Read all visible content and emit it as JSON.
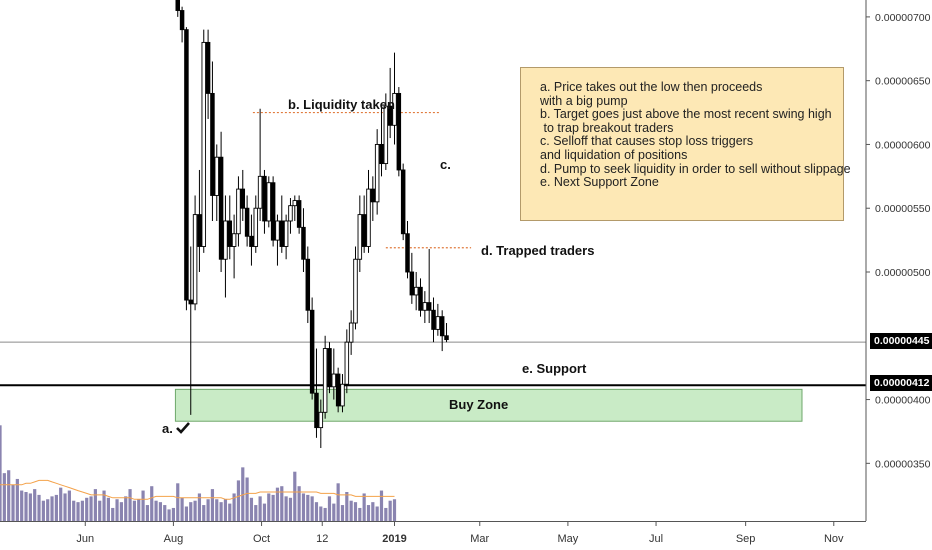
{
  "annotations": {
    "note_lines": [
      "a. Price takes out the low then proceeds",
      "with a big pump",
      "b. Target goes just above the most recent swing high",
      " to trap breakout traders",
      "c. Selloff that causes stop loss triggers",
      "and liquidation of positions",
      "d. Pump to seek liquidity in order to sell without slippage",
      "e. Next Support Zone"
    ],
    "liquidity_taken": "b. Liquidity taken",
    "c_label": "c.",
    "trapped_traders": "d. Trapped traders",
    "support_label": "e. Support",
    "buy_zone_label": "Buy Zone",
    "a_label": "a.",
    "check_icon": "checkmark-icon"
  },
  "price_tags": {
    "current": "0.00000445",
    "support": "0.00000412"
  },
  "colors": {
    "candle": "#000000",
    "buy_zone_fill": "#c9ebc6",
    "buy_zone_border": "#6fa86b",
    "volume_bar": "#8a84b0",
    "volume_ma": "#f4a24a",
    "dotted_level": "#e07a3c",
    "note_background": "#fde8b5"
  },
  "chart_data": {
    "type": "candlestick",
    "y_axis": {
      "ticks": [
        "0.00000700",
        "0.00000650",
        "0.00000600",
        "0.00000550",
        "0.00000500",
        "0.00000400",
        "0.00000350"
      ],
      "tick_values": [
        700,
        650,
        600,
        550,
        500,
        400,
        350
      ],
      "range": [
        318,
        720
      ],
      "unit": "1e-8",
      "position": "right"
    },
    "x_axis": {
      "ticks": [
        "Jun",
        "Aug",
        "Oct",
        "12",
        "2019",
        "Mar",
        "May",
        "Jul",
        "Sep",
        "Nov"
      ],
      "tick_days": [
        -214,
        -153,
        -92,
        -50,
        0,
        59,
        120,
        181,
        243,
        304
      ]
    },
    "levels": {
      "current_price": 445,
      "support": 412,
      "liquidity_taken": 625,
      "trapped_traders": 519
    },
    "buy_zone": {
      "low": 383,
      "high": 408,
      "day_start": -153,
      "day_end": 282
    },
    "candles": [
      {
        "d": -150,
        "o": 720,
        "h": 722,
        "l": 700,
        "c": 705
      },
      {
        "d": -147,
        "o": 705,
        "h": 708,
        "l": 680,
        "c": 690
      },
      {
        "d": -144,
        "o": 690,
        "h": 692,
        "l": 470,
        "c": 478
      },
      {
        "d": -141,
        "o": 478,
        "h": 520,
        "l": 388,
        "c": 475
      },
      {
        "d": -138,
        "o": 475,
        "h": 560,
        "l": 470,
        "c": 545
      },
      {
        "d": -135,
        "o": 545,
        "h": 580,
        "l": 500,
        "c": 520
      },
      {
        "d": -132,
        "o": 520,
        "h": 690,
        "l": 515,
        "c": 680
      },
      {
        "d": -129,
        "o": 680,
        "h": 690,
        "l": 620,
        "c": 640
      },
      {
        "d": -126,
        "o": 640,
        "h": 665,
        "l": 540,
        "c": 560
      },
      {
        "d": -123,
        "o": 560,
        "h": 600,
        "l": 540,
        "c": 590
      },
      {
        "d": -120,
        "o": 590,
        "h": 610,
        "l": 500,
        "c": 510
      },
      {
        "d": -117,
        "o": 510,
        "h": 560,
        "l": 480,
        "c": 540
      },
      {
        "d": -114,
        "o": 540,
        "h": 560,
        "l": 510,
        "c": 520
      },
      {
        "d": -111,
        "o": 520,
        "h": 545,
        "l": 495,
        "c": 530
      },
      {
        "d": -108,
        "o": 530,
        "h": 575,
        "l": 520,
        "c": 565
      },
      {
        "d": -105,
        "o": 565,
        "h": 580,
        "l": 540,
        "c": 550
      },
      {
        "d": -102,
        "o": 550,
        "h": 560,
        "l": 520,
        "c": 528
      },
      {
        "d": -99,
        "o": 528,
        "h": 545,
        "l": 505,
        "c": 520
      },
      {
        "d": -96,
        "o": 520,
        "h": 560,
        "l": 515,
        "c": 550
      },
      {
        "d": -93,
        "o": 550,
        "h": 628,
        "l": 540,
        "c": 575
      },
      {
        "d": -90,
        "o": 575,
        "h": 580,
        "l": 530,
        "c": 540
      },
      {
        "d": -87,
        "o": 540,
        "h": 575,
        "l": 535,
        "c": 570
      },
      {
        "d": -84,
        "o": 570,
        "h": 575,
        "l": 520,
        "c": 525
      },
      {
        "d": -81,
        "o": 525,
        "h": 545,
        "l": 505,
        "c": 540
      },
      {
        "d": -78,
        "o": 540,
        "h": 560,
        "l": 515,
        "c": 520
      },
      {
        "d": -75,
        "o": 520,
        "h": 545,
        "l": 510,
        "c": 540
      },
      {
        "d": -72,
        "o": 540,
        "h": 558,
        "l": 530,
        "c": 552
      },
      {
        "d": -69,
        "o": 552,
        "h": 560,
        "l": 540,
        "c": 556
      },
      {
        "d": -66,
        "o": 556,
        "h": 560,
        "l": 530,
        "c": 535
      },
      {
        "d": -63,
        "o": 535,
        "h": 550,
        "l": 500,
        "c": 510
      },
      {
        "d": -60,
        "o": 510,
        "h": 520,
        "l": 460,
        "c": 470
      },
      {
        "d": -57,
        "o": 470,
        "h": 480,
        "l": 400,
        "c": 405
      },
      {
        "d": -54,
        "o": 405,
        "h": 440,
        "l": 370,
        "c": 378
      },
      {
        "d": -51,
        "o": 378,
        "h": 400,
        "l": 362,
        "c": 390
      },
      {
        "d": -48,
        "o": 390,
        "h": 450,
        "l": 385,
        "c": 440
      },
      {
        "d": -45,
        "o": 440,
        "h": 445,
        "l": 405,
        "c": 410
      },
      {
        "d": -42,
        "o": 410,
        "h": 440,
        "l": 400,
        "c": 420
      },
      {
        "d": -39,
        "o": 420,
        "h": 425,
        "l": 390,
        "c": 395
      },
      {
        "d": -36,
        "o": 395,
        "h": 420,
        "l": 390,
        "c": 412
      },
      {
        "d": -33,
        "o": 412,
        "h": 455,
        "l": 405,
        "c": 445
      },
      {
        "d": -30,
        "o": 445,
        "h": 470,
        "l": 435,
        "c": 460
      },
      {
        "d": -27,
        "o": 460,
        "h": 520,
        "l": 455,
        "c": 510
      },
      {
        "d": -24,
        "o": 510,
        "h": 560,
        "l": 500,
        "c": 545
      },
      {
        "d": -21,
        "o": 545,
        "h": 560,
        "l": 515,
        "c": 520
      },
      {
        "d": -18,
        "o": 520,
        "h": 580,
        "l": 515,
        "c": 565
      },
      {
        "d": -15,
        "o": 565,
        "h": 575,
        "l": 540,
        "c": 555
      },
      {
        "d": -12,
        "o": 555,
        "h": 612,
        "l": 545,
        "c": 600
      },
      {
        "d": -9,
        "o": 600,
        "h": 630,
        "l": 575,
        "c": 585
      },
      {
        "d": -6,
        "o": 585,
        "h": 640,
        "l": 580,
        "c": 630
      },
      {
        "d": -3,
        "o": 630,
        "h": 660,
        "l": 605,
        "c": 615
      },
      {
        "d": 0,
        "o": 615,
        "h": 672,
        "l": 600,
        "c": 640
      },
      {
        "d": 3,
        "o": 640,
        "h": 645,
        "l": 575,
        "c": 580
      },
      {
        "d": 6,
        "o": 580,
        "h": 585,
        "l": 525,
        "c": 530
      },
      {
        "d": 9,
        "o": 530,
        "h": 540,
        "l": 495,
        "c": 500
      },
      {
        "d": 12,
        "o": 500,
        "h": 515,
        "l": 475,
        "c": 482
      },
      {
        "d": 15,
        "o": 482,
        "h": 500,
        "l": 470,
        "c": 488
      },
      {
        "d": 18,
        "o": 488,
        "h": 495,
        "l": 465,
        "c": 470
      },
      {
        "d": 21,
        "o": 470,
        "h": 485,
        "l": 460,
        "c": 476
      },
      {
        "d": 24,
        "o": 476,
        "h": 518,
        "l": 460,
        "c": 470
      },
      {
        "d": 27,
        "o": 470,
        "h": 480,
        "l": 445,
        "c": 455
      },
      {
        "d": 30,
        "o": 455,
        "h": 475,
        "l": 450,
        "c": 465
      },
      {
        "d": 33,
        "o": 465,
        "h": 470,
        "l": 438,
        "c": 450
      },
      {
        "d": 36,
        "o": 450,
        "h": 460,
        "l": 445,
        "c": 447
      }
    ],
    "volume": {
      "days_start": -300,
      "day_step": 3,
      "values": [
        34,
        37,
        27,
        23,
        22,
        24,
        31,
        22,
        18,
        66,
        33,
        35,
        25,
        29,
        21,
        20,
        19,
        22,
        18,
        14,
        15,
        17,
        18,
        23,
        19,
        21,
        14,
        13,
        14,
        16,
        17,
        22,
        14,
        21,
        16,
        9,
        15,
        13,
        17,
        22,
        14,
        15,
        21,
        11,
        24,
        14,
        13,
        11,
        8,
        9,
        26,
        16,
        10,
        13,
        14,
        19,
        11,
        15,
        22,
        15,
        13,
        15,
        12,
        19,
        28,
        37,
        30,
        16,
        11,
        17,
        12,
        19,
        18,
        23,
        24,
        17,
        16,
        34,
        24,
        19,
        18,
        17,
        13,
        10,
        9,
        17,
        12,
        26,
        11,
        20,
        14,
        13,
        9,
        19,
        11,
        13,
        10,
        21,
        9,
        14,
        15
      ],
      "ma": [
        25,
        25,
        25,
        25,
        25,
        25,
        25,
        25,
        25,
        25,
        25,
        25,
        25,
        25,
        25,
        26,
        26,
        27,
        28,
        28,
        28,
        27,
        26,
        25,
        24,
        23,
        22,
        21,
        20,
        19,
        18,
        18,
        18,
        18,
        17,
        16,
        16,
        16,
        16,
        16,
        15,
        15,
        15,
        15,
        16,
        17,
        17,
        17,
        17,
        17,
        16,
        16,
        16,
        16,
        16,
        16,
        16,
        16,
        16,
        16,
        16,
        15,
        15,
        16,
        17,
        18,
        19,
        19,
        19,
        20,
        20,
        20,
        20,
        20,
        20,
        20,
        20,
        20,
        20,
        20,
        20,
        20,
        20,
        19,
        19,
        19,
        19,
        18,
        18,
        18,
        18,
        17,
        17,
        17,
        17,
        17,
        17,
        17,
        17,
        17,
        17
      ],
      "unit": "relative"
    }
  }
}
